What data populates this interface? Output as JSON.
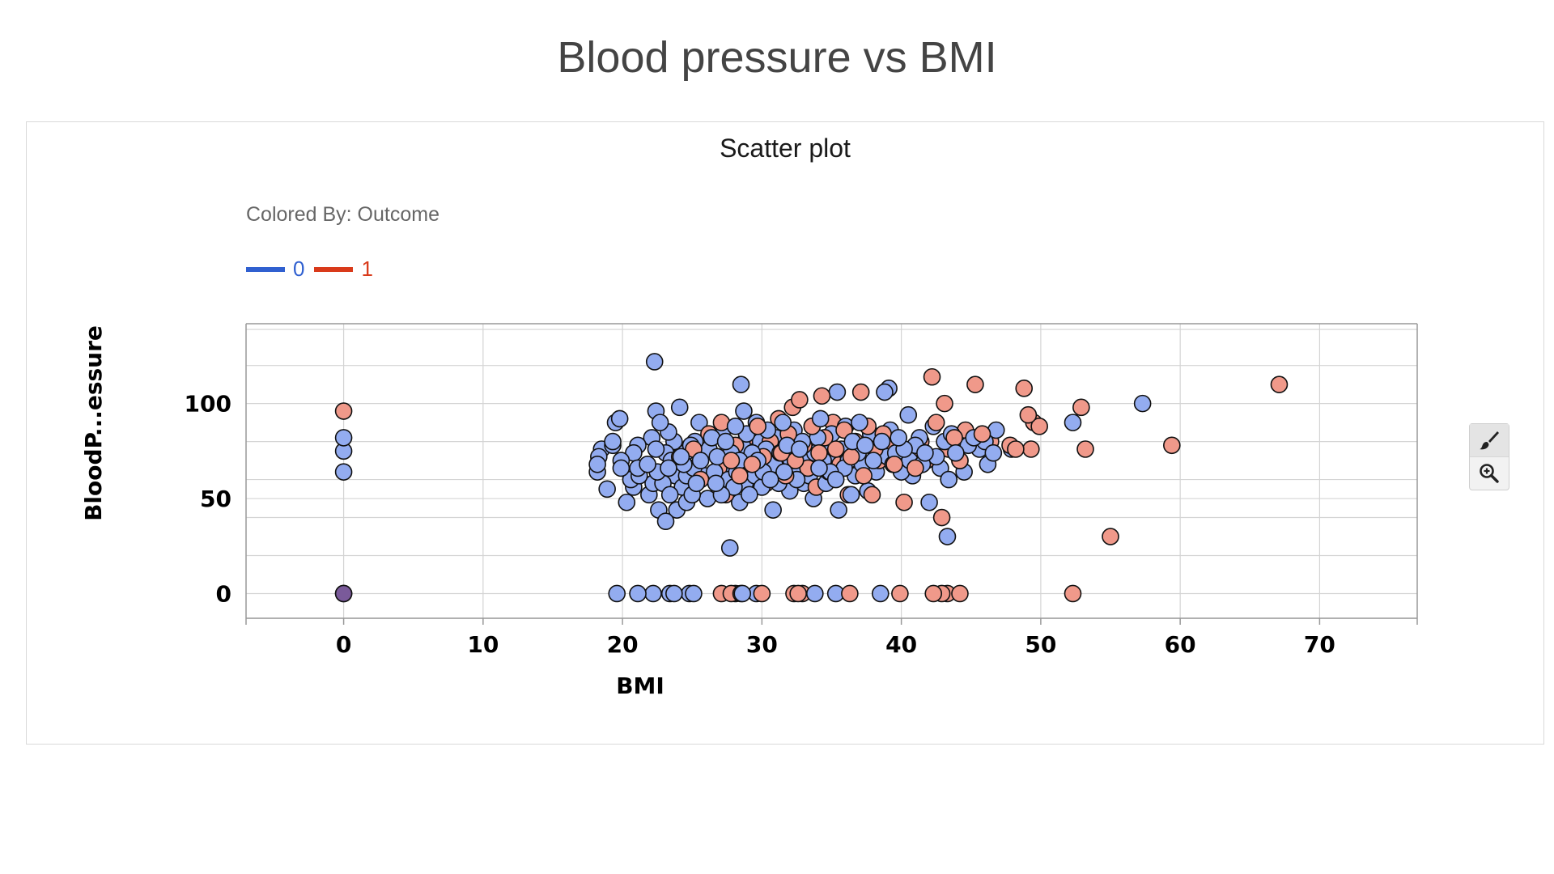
{
  "page_title": "Blood pressure vs BMI",
  "panel_title": "Scatter plot",
  "colored_by_label": "Colored By: Outcome",
  "legend": [
    {
      "label": "0",
      "color": "#3060d0"
    },
    {
      "label": "1",
      "color": "#d93a1a"
    }
  ],
  "point_colors": {
    "0": "#93acf0",
    "1": "#f0998a"
  },
  "toolbar": {
    "brush": "paintbrush-icon",
    "zoom": "zoom-in-icon"
  },
  "chart_data": {
    "type": "scatter",
    "title": "Scatter plot",
    "xlabel": "BMI",
    "ylabel": "BloodP...essure",
    "xlim": [
      -7,
      77
    ],
    "ylim": [
      -13,
      142
    ],
    "xticks": [
      0,
      10,
      20,
      30,
      40,
      50,
      60,
      70
    ],
    "yticks": [
      0,
      50,
      100
    ],
    "y_minor_gridlines": [
      -13,
      20,
      40,
      60,
      80,
      120,
      139
    ],
    "grid": true,
    "color_by": "Outcome",
    "series": [
      {
        "name": "0",
        "points": [
          [
            0,
            0
          ],
          [
            0,
            82
          ],
          [
            0,
            75
          ],
          [
            0,
            64
          ],
          [
            19.6,
            0
          ],
          [
            21.1,
            0
          ],
          [
            22.2,
            0
          ],
          [
            23.4,
            0
          ],
          [
            23.7,
            0
          ],
          [
            24.8,
            0
          ],
          [
            25.1,
            0
          ],
          [
            28.6,
            0
          ],
          [
            29.6,
            0
          ],
          [
            33.8,
            0
          ],
          [
            35.3,
            0
          ],
          [
            38.5,
            0
          ],
          [
            18.2,
            64
          ],
          [
            18.2,
            68
          ],
          [
            18.3,
            72
          ],
          [
            18.5,
            76
          ],
          [
            18.9,
            55
          ],
          [
            19.3,
            78
          ],
          [
            19.3,
            80
          ],
          [
            19.5,
            90
          ],
          [
            19.9,
            70
          ],
          [
            19.9,
            66
          ],
          [
            19.8,
            92
          ],
          [
            20.3,
            48
          ],
          [
            20.6,
            60
          ],
          [
            20.8,
            74
          ],
          [
            20.8,
            56
          ],
          [
            21.1,
            66
          ],
          [
            21.1,
            78
          ],
          [
            21.2,
            62
          ],
          [
            21.8,
            68
          ],
          [
            21.9,
            52
          ],
          [
            22.1,
            82
          ],
          [
            22.2,
            58
          ],
          [
            22.3,
            122
          ],
          [
            22.4,
            76
          ],
          [
            22.4,
            96
          ],
          [
            22.5,
            64
          ],
          [
            22.6,
            44
          ],
          [
            22.7,
            90
          ],
          [
            22.9,
            58
          ],
          [
            23.1,
            74
          ],
          [
            23.1,
            38
          ],
          [
            23.3,
            66
          ],
          [
            23.3,
            85
          ],
          [
            23.4,
            52
          ],
          [
            23.5,
            70
          ],
          [
            23.7,
            80
          ],
          [
            23.8,
            62
          ],
          [
            23.9,
            44
          ],
          [
            24.1,
            98
          ],
          [
            24.2,
            72
          ],
          [
            24.3,
            56
          ],
          [
            24.4,
            68
          ],
          [
            24.5,
            74
          ],
          [
            24.6,
            48
          ],
          [
            24.6,
            62
          ],
          [
            24.9,
            78
          ],
          [
            25.0,
            52
          ],
          [
            25.1,
            66
          ],
          [
            25.2,
            80
          ],
          [
            25.3,
            58
          ],
          [
            25.5,
            90
          ],
          [
            25.6,
            70
          ],
          [
            25.9,
            62
          ],
          [
            26.1,
            50
          ],
          [
            26.2,
            76
          ],
          [
            26.4,
            82
          ],
          [
            26.6,
            64
          ],
          [
            26.7,
            58
          ],
          [
            26.8,
            72
          ],
          [
            27.1,
            52
          ],
          [
            27.2,
            86
          ],
          [
            27.3,
            68
          ],
          [
            27.4,
            80
          ],
          [
            27.6,
            60
          ],
          [
            27.7,
            24
          ],
          [
            27.8,
            74
          ],
          [
            28.0,
            56
          ],
          [
            28.1,
            88
          ],
          [
            28.2,
            64
          ],
          [
            28.4,
            70
          ],
          [
            28.4,
            48
          ],
          [
            28.5,
            110
          ],
          [
            28.6,
            78
          ],
          [
            28.7,
            96
          ],
          [
            28.8,
            58
          ],
          [
            28.9,
            84
          ],
          [
            29.0,
            66
          ],
          [
            29.1,
            52
          ],
          [
            29.3,
            74
          ],
          [
            29.5,
            62
          ],
          [
            29.6,
            90
          ],
          [
            29.7,
            70
          ],
          [
            29.9,
            80
          ],
          [
            30.0,
            56
          ],
          [
            30.1,
            64
          ],
          [
            30.3,
            76
          ],
          [
            30.4,
            86
          ],
          [
            30.5,
            72
          ],
          [
            30.6,
            60
          ],
          [
            30.8,
            44
          ],
          [
            30.9,
            68
          ],
          [
            31.0,
            82
          ],
          [
            31.2,
            58
          ],
          [
            31.3,
            74
          ],
          [
            31.5,
            90
          ],
          [
            31.6,
            64
          ],
          [
            31.8,
            78
          ],
          [
            32.0,
            54
          ],
          [
            32.1,
            70
          ],
          [
            32.3,
            86
          ],
          [
            32.4,
            66
          ],
          [
            32.5,
            60
          ],
          [
            32.7,
            76
          ],
          [
            32.9,
            80
          ],
          [
            33.0,
            58
          ],
          [
            33.2,
            72
          ],
          [
            33.4,
            62
          ],
          [
            33.6,
            88
          ],
          [
            33.7,
            50
          ],
          [
            33.8,
            74
          ],
          [
            34.0,
            82
          ],
          [
            34.1,
            66
          ],
          [
            34.2,
            92
          ],
          [
            34.4,
            70
          ],
          [
            34.6,
            58
          ],
          [
            34.7,
            78
          ],
          [
            34.9,
            64
          ],
          [
            35.0,
            84
          ],
          [
            35.2,
            72
          ],
          [
            35.3,
            60
          ],
          [
            35.4,
            106
          ],
          [
            35.5,
            44
          ],
          [
            35.7,
            76
          ],
          [
            35.9,
            66
          ],
          [
            36.0,
            88
          ],
          [
            36.2,
            70
          ],
          [
            36.4,
            52
          ],
          [
            36.5,
            80
          ],
          [
            36.7,
            62
          ],
          [
            36.9,
            74
          ],
          [
            37.0,
            90
          ],
          [
            37.2,
            68
          ],
          [
            37.4,
            78
          ],
          [
            37.6,
            54
          ],
          [
            37.8,
            84
          ],
          [
            38.0,
            70
          ],
          [
            38.2,
            64
          ],
          [
            38.4,
            76
          ],
          [
            38.6,
            80
          ],
          [
            38.8,
            106
          ],
          [
            39.0,
            72
          ],
          [
            39.1,
            108
          ],
          [
            39.2,
            86
          ],
          [
            39.4,
            68
          ],
          [
            39.6,
            74
          ],
          [
            39.8,
            82
          ],
          [
            40.0,
            64
          ],
          [
            40.2,
            76
          ],
          [
            40.5,
            94
          ],
          [
            40.6,
            70
          ],
          [
            40.8,
            62
          ],
          [
            41.0,
            78
          ],
          [
            41.3,
            82
          ],
          [
            41.5,
            68
          ],
          [
            41.7,
            74
          ],
          [
            42.0,
            48
          ],
          [
            42.3,
            88
          ],
          [
            42.5,
            72
          ],
          [
            42.8,
            66
          ],
          [
            43.1,
            80
          ],
          [
            43.3,
            30
          ],
          [
            43.4,
            60
          ],
          [
            43.6,
            84
          ],
          [
            43.9,
            74
          ],
          [
            44.2,
            70
          ],
          [
            44.5,
            64
          ],
          [
            44.8,
            78
          ],
          [
            45.2,
            82
          ],
          [
            45.6,
            76
          ],
          [
            46.0,
            80
          ],
          [
            46.2,
            68
          ],
          [
            46.6,
            74
          ],
          [
            46.8,
            86
          ],
          [
            47.9,
            76
          ],
          [
            52.3,
            90
          ],
          [
            57.3,
            100
          ]
        ]
      },
      {
        "name": "1",
        "points": [
          [
            0,
            96
          ],
          [
            27.1,
            0
          ],
          [
            27.8,
            0
          ],
          [
            28.1,
            0
          ],
          [
            28.5,
            0
          ],
          [
            30.0,
            0
          ],
          [
            32.3,
            0
          ],
          [
            32.6,
            0
          ],
          [
            32.9,
            0
          ],
          [
            36.3,
            0
          ],
          [
            39.9,
            0
          ],
          [
            42.3,
            0
          ],
          [
            42.9,
            0
          ],
          [
            43.3,
            0
          ],
          [
            44.2,
            0
          ],
          [
            52.3,
            0
          ],
          [
            24.1,
            72
          ],
          [
            25.1,
            76
          ],
          [
            25.6,
            60
          ],
          [
            26.2,
            84
          ],
          [
            26.9,
            66
          ],
          [
            27.1,
            90
          ],
          [
            27.4,
            52
          ],
          [
            27.8,
            70
          ],
          [
            28.1,
            78
          ],
          [
            28.4,
            62
          ],
          [
            28.9,
            82
          ],
          [
            29.3,
            68
          ],
          [
            29.7,
            88
          ],
          [
            30.1,
            72
          ],
          [
            30.3,
            58
          ],
          [
            30.6,
            80
          ],
          [
            30.9,
            66
          ],
          [
            31.2,
            92
          ],
          [
            31.4,
            74
          ],
          [
            31.7,
            62
          ],
          [
            31.9,
            84
          ],
          [
            32.2,
            98
          ],
          [
            32.4,
            70
          ],
          [
            32.7,
            102
          ],
          [
            33.0,
            78
          ],
          [
            33.3,
            66
          ],
          [
            33.6,
            88
          ],
          [
            33.9,
            56
          ],
          [
            34.1,
            74
          ],
          [
            34.3,
            104
          ],
          [
            34.5,
            82
          ],
          [
            34.8,
            64
          ],
          [
            35.1,
            90
          ],
          [
            35.3,
            76
          ],
          [
            35.6,
            68
          ],
          [
            35.9,
            86
          ],
          [
            36.2,
            52
          ],
          [
            36.4,
            72
          ],
          [
            36.7,
            80
          ],
          [
            37.1,
            106
          ],
          [
            37.3,
            62
          ],
          [
            37.6,
            88
          ],
          [
            37.9,
            52
          ],
          [
            38.1,
            76
          ],
          [
            38.4,
            70
          ],
          [
            38.7,
            84
          ],
          [
            39.0,
            78
          ],
          [
            39.5,
            68
          ],
          [
            40.2,
            48
          ],
          [
            40.6,
            74
          ],
          [
            41.0,
            66
          ],
          [
            41.4,
            80
          ],
          [
            41.8,
            70
          ],
          [
            42.2,
            114
          ],
          [
            42.5,
            90
          ],
          [
            42.9,
            40
          ],
          [
            43.1,
            100
          ],
          [
            43.4,
            76
          ],
          [
            43.8,
            82
          ],
          [
            44.2,
            70
          ],
          [
            44.6,
            86
          ],
          [
            45.3,
            110
          ],
          [
            45.8,
            84
          ],
          [
            46.4,
            80
          ],
          [
            47.8,
            78
          ],
          [
            48.2,
            76
          ],
          [
            48.8,
            108
          ],
          [
            49.1,
            94
          ],
          [
            49.3,
            76
          ],
          [
            49.5,
            90
          ],
          [
            49.9,
            88
          ],
          [
            52.9,
            98
          ],
          [
            53.2,
            76
          ],
          [
            55.0,
            30
          ],
          [
            59.4,
            78
          ],
          [
            67.1,
            110
          ]
        ]
      }
    ]
  }
}
